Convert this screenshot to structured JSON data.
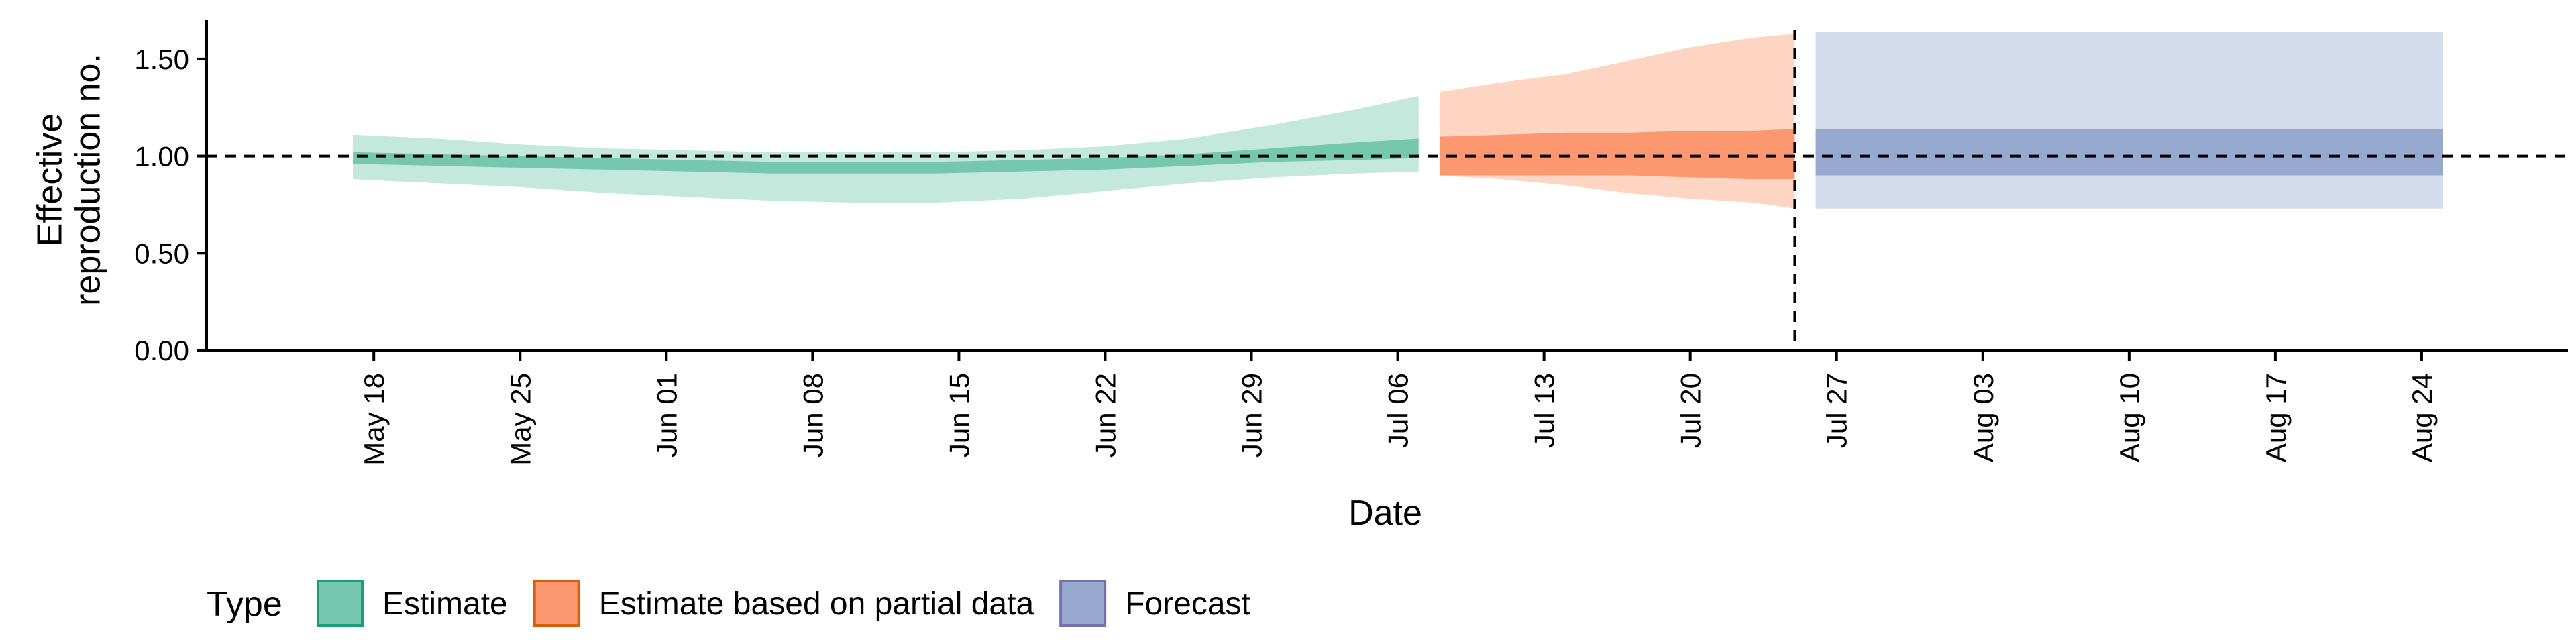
{
  "chart_data": {
    "type": "area",
    "xlabel": "Date",
    "ylabel": "Effective\nreproduction no.",
    "ylim": [
      0,
      1.7
    ],
    "xlim": [
      "2020-05-10",
      "2020-08-31"
    ],
    "yticks": [
      0.0,
      0.5,
      1.0,
      1.5
    ],
    "ytick_labels": [
      "0.00",
      "0.50",
      "1.00",
      "1.50"
    ],
    "xticks": [
      "2020-05-18",
      "2020-05-25",
      "2020-06-01",
      "2020-06-08",
      "2020-06-15",
      "2020-06-22",
      "2020-06-29",
      "2020-07-06",
      "2020-07-13",
      "2020-07-20",
      "2020-07-27",
      "2020-08-03",
      "2020-08-10",
      "2020-08-17",
      "2020-08-24"
    ],
    "xtick_labels": [
      "May 18",
      "May 25",
      "Jun 01",
      "Jun 08",
      "Jun 15",
      "Jun 22",
      "Jun 29",
      "Jul 06",
      "Jul 13",
      "Jul 20",
      "Jul 27",
      "Aug 03",
      "Aug 10",
      "Aug 17",
      "Aug 24"
    ],
    "reference_hline": 1.0,
    "reference_vline": "2020-07-25",
    "grid": false,
    "legend": {
      "title": "Type",
      "position": "bottom-left",
      "entries": [
        {
          "label": "Estimate",
          "fill": "#66c2a5",
          "border": "#1b9e77"
        },
        {
          "label": "Estimate based on partial data",
          "fill": "#fc8d62",
          "border": "#d95f02"
        },
        {
          "label": "Forecast",
          "fill": "#8da0cb",
          "border": "#7570b3"
        }
      ]
    },
    "series": [
      {
        "name": "Estimate",
        "color": "#1b9e77",
        "x": [
          "2020-05-17",
          "2020-05-21",
          "2020-05-25",
          "2020-05-29",
          "2020-06-02",
          "2020-06-06",
          "2020-06-10",
          "2020-06-14",
          "2020-06-18",
          "2020-06-22",
          "2020-06-26",
          "2020-06-30",
          "2020-07-04",
          "2020-07-07"
        ],
        "outer_upper": [
          1.11,
          1.09,
          1.06,
          1.04,
          1.03,
          1.02,
          1.02,
          1.02,
          1.03,
          1.05,
          1.09,
          1.16,
          1.24,
          1.31
        ],
        "inner_upper": [
          1.02,
          1.01,
          1.0,
          0.99,
          0.98,
          0.97,
          0.97,
          0.97,
          0.98,
          0.99,
          1.01,
          1.04,
          1.07,
          1.09
        ],
        "inner_lower": [
          0.96,
          0.95,
          0.94,
          0.93,
          0.92,
          0.91,
          0.91,
          0.91,
          0.92,
          0.93,
          0.95,
          0.97,
          0.98,
          0.99
        ],
        "outer_lower": [
          0.88,
          0.86,
          0.84,
          0.81,
          0.79,
          0.77,
          0.76,
          0.76,
          0.78,
          0.82,
          0.86,
          0.89,
          0.91,
          0.92
        ]
      },
      {
        "name": "Estimate based on partial data",
        "color": "#d95f02",
        "x": [
          "2020-07-08",
          "2020-07-11",
          "2020-07-14",
          "2020-07-17",
          "2020-07-20",
          "2020-07-23",
          "2020-07-25"
        ],
        "outer_upper": [
          1.33,
          1.38,
          1.42,
          1.49,
          1.56,
          1.61,
          1.63
        ],
        "inner_upper": [
          1.1,
          1.11,
          1.12,
          1.12,
          1.13,
          1.13,
          1.14
        ],
        "inner_lower": [
          0.9,
          0.9,
          0.9,
          0.9,
          0.89,
          0.88,
          0.88
        ],
        "outer_lower": [
          0.9,
          0.88,
          0.85,
          0.81,
          0.78,
          0.76,
          0.73
        ]
      },
      {
        "name": "Forecast",
        "color": "#7570b3",
        "x": [
          "2020-07-26",
          "2020-08-25"
        ],
        "outer_upper": [
          1.64,
          1.64
        ],
        "inner_upper": [
          1.14,
          1.14
        ],
        "inner_lower": [
          0.9,
          0.9
        ],
        "outer_lower": [
          0.73,
          0.73
        ]
      }
    ]
  }
}
